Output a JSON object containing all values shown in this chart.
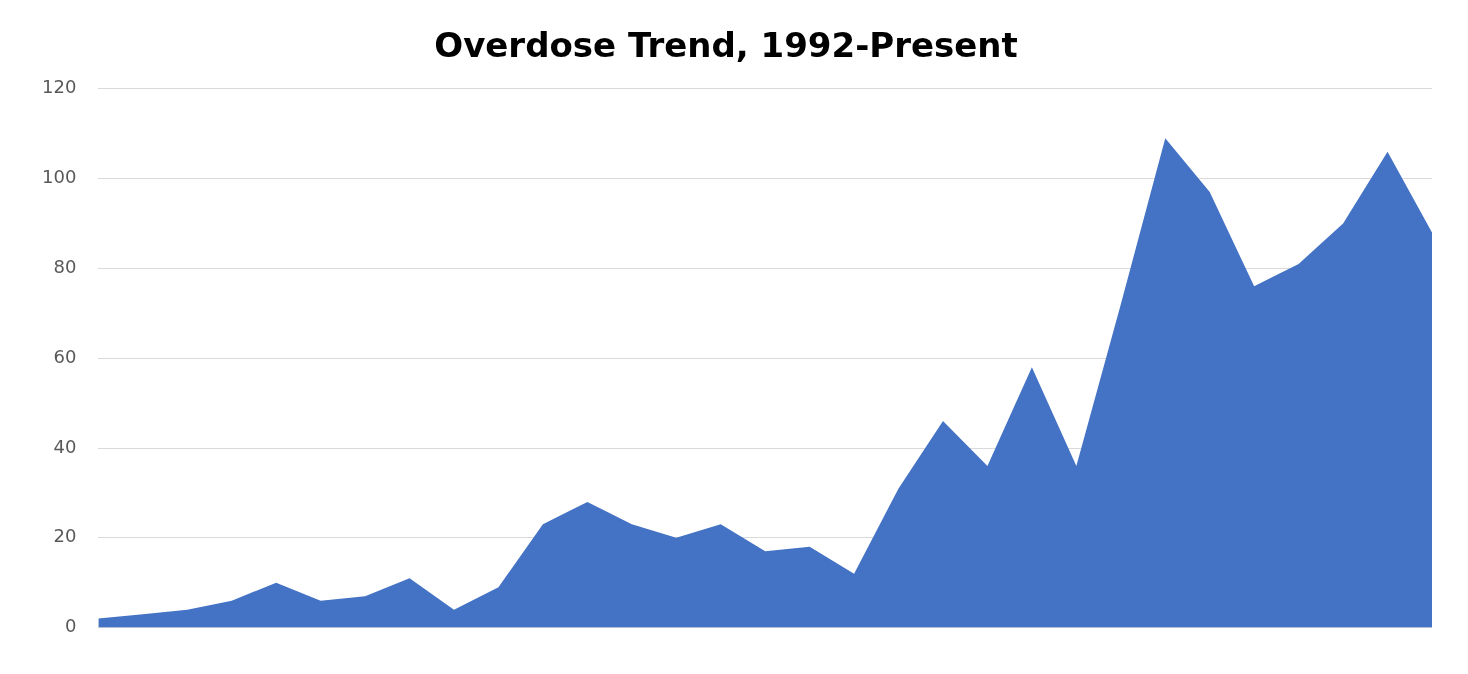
{
  "chart_data": {
    "type": "area",
    "title": "Overdose Trend, 1992-Present",
    "categories": [
      null,
      null,
      null,
      null,
      null,
      null,
      null,
      null,
      null,
      null,
      null,
      null,
      null,
      null,
      null,
      null,
      null,
      null,
      null,
      null,
      null,
      null,
      null,
      null,
      null,
      null,
      null,
      null,
      null,
      null,
      null
    ],
    "values": [
      2,
      3,
      4,
      6,
      10,
      6,
      7,
      11,
      4,
      9,
      23,
      28,
      23,
      20,
      23,
      17,
      18,
      12,
      31,
      46,
      36,
      58,
      36,
      72,
      109,
      97,
      76,
      81,
      90,
      106,
      88
    ],
    "color": "#4472c4",
    "ylim": [
      0,
      120
    ],
    "yticks": [
      0,
      20,
      40,
      60,
      80,
      100,
      120
    ],
    "grid": "y",
    "legend": false
  }
}
